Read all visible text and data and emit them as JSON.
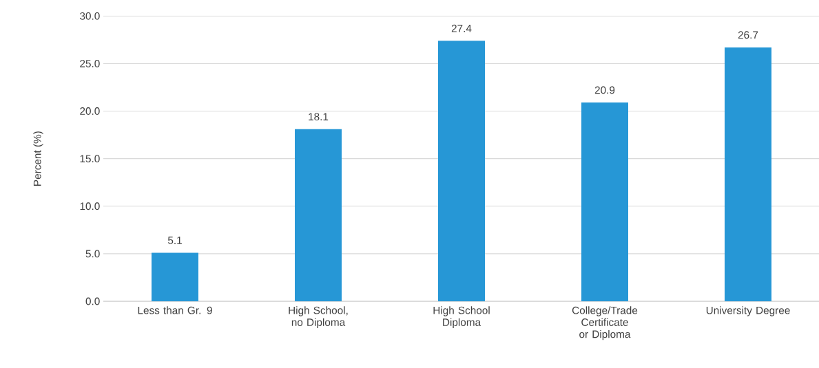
{
  "chart_data": {
    "type": "bar",
    "ylabel": "Percent (%)",
    "categories": [
      "Less than Gr. 9",
      "High School, no Diploma",
      "High School Diploma",
      "College/Trade Certificate or Diploma",
      "University Degree"
    ],
    "values": [
      5.1,
      18.1,
      27.4,
      20.9,
      26.7
    ],
    "color": "#2697d6",
    "ylim": [
      0,
      30
    ],
    "yticks": [
      {
        "value": 0,
        "label": "0.0"
      },
      {
        "value": 5,
        "label": "5.0"
      },
      {
        "value": 10,
        "label": "10.0"
      },
      {
        "value": 15,
        "label": "15.0"
      },
      {
        "value": 20,
        "label": "20.0"
      },
      {
        "value": 25,
        "label": "25.0"
      },
      {
        "value": 30,
        "label": "30.0"
      }
    ],
    "grid": "y",
    "data_labels": true
  }
}
